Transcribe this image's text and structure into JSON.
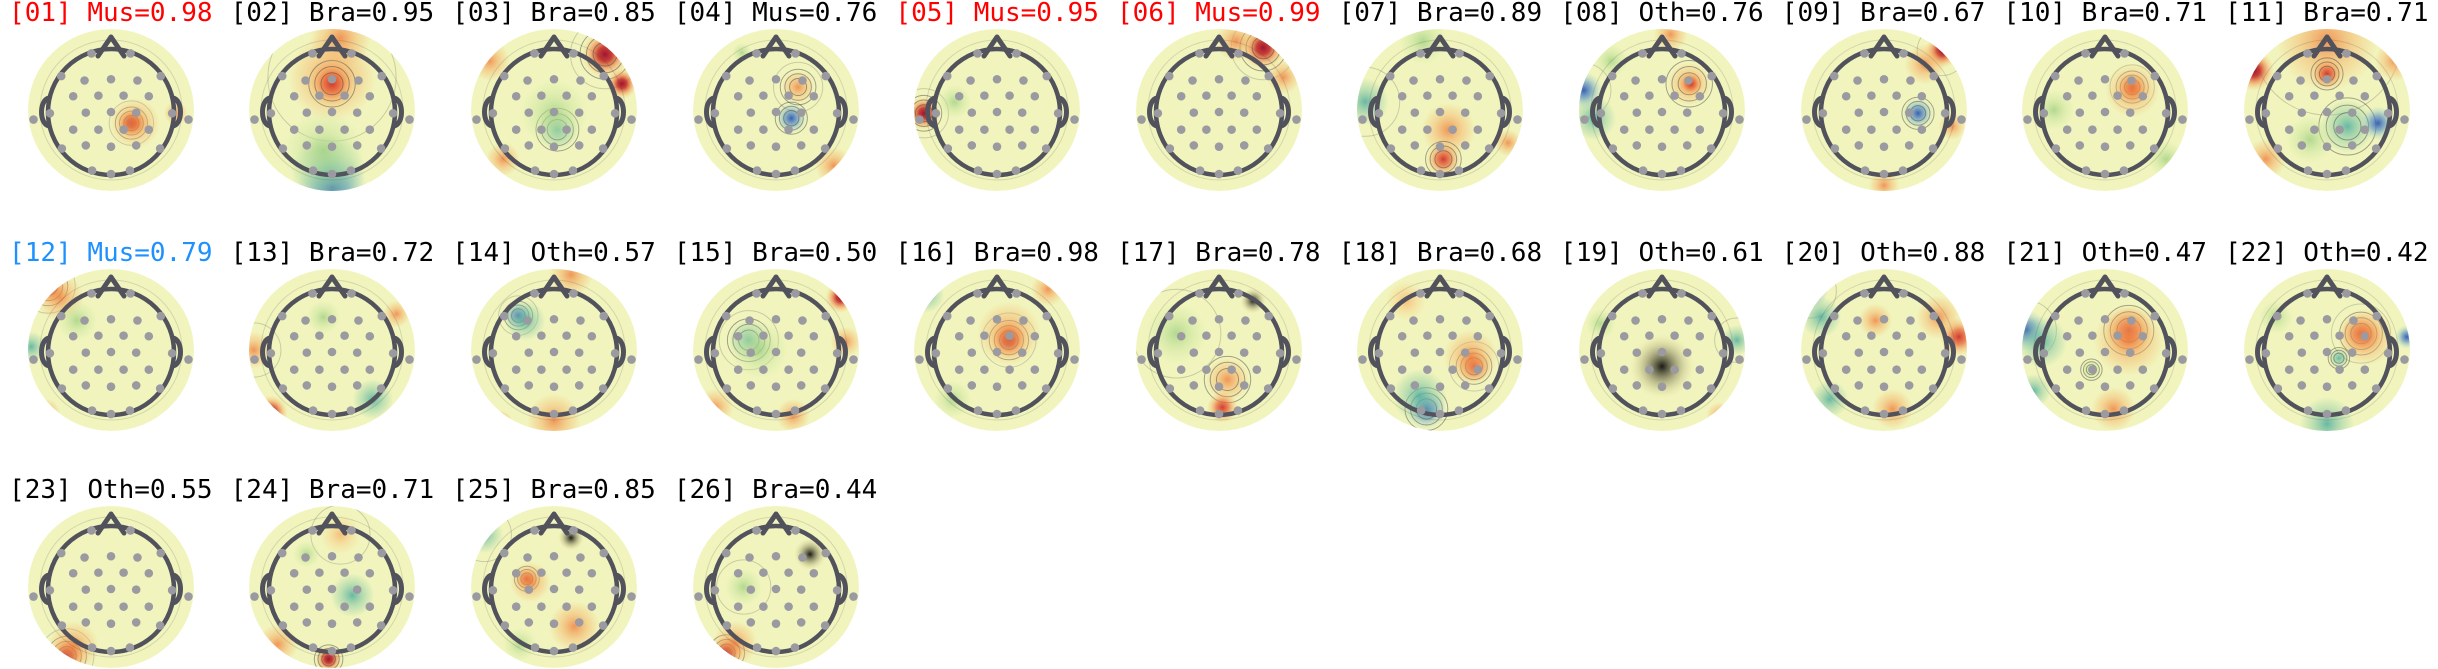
{
  "figure": {
    "background": "#ffffff",
    "head_outline_color": "#52525c",
    "sensor_dot_color": "#9a9aa0",
    "contour_color": "#3a3a3a",
    "base_field_color": "#f1f5bd"
  },
  "chart_data": {
    "type": "topomap_grid",
    "rows": 3,
    "cols": 11,
    "colormap": "red-yellow-green-blue spectral-like",
    "label_colors_seen": {
      "red": "#ff0000",
      "black": "#000000",
      "blue": "#1e90ff"
    },
    "components": [
      {
        "id": "[01]",
        "class": "Mus",
        "score": 0.98,
        "label": "[01] Mus=0.98",
        "label_color": "#ff0000",
        "blobs": [
          [
            62,
            58,
            9,
            "crim",
            1
          ],
          [
            64,
            58,
            15,
            "org",
            0
          ],
          [
            88,
            52,
            7,
            "org",
            0
          ]
        ]
      },
      {
        "id": "[02]",
        "class": "Bra",
        "score": 0.95,
        "label": "[02] Bra=0.95",
        "label_color": "#000000",
        "blobs": [
          [
            50,
            30,
            26,
            "org",
            0
          ],
          [
            50,
            34,
            13,
            "red2",
            1
          ],
          [
            50,
            97,
            20,
            "blu",
            0
          ],
          [
            48,
            88,
            22,
            "tea",
            0
          ],
          [
            45,
            75,
            24,
            "grn",
            0
          ],
          [
            55,
            6,
            18,
            "org",
            0
          ]
        ]
      },
      {
        "id": "[03]",
        "class": "Bra",
        "score": 0.85,
        "label": "[03] Bra=0.85",
        "label_color": "#000000",
        "blobs": [
          [
            80,
            16,
            14,
            "crim",
            1
          ],
          [
            90,
            34,
            9,
            "crim",
            0
          ],
          [
            12,
            20,
            12,
            "org",
            0
          ],
          [
            52,
            62,
            12,
            "tea",
            1
          ],
          [
            50,
            52,
            20,
            "grn",
            0
          ],
          [
            20,
            80,
            10,
            "org",
            0
          ]
        ]
      },
      {
        "id": "[04]",
        "class": "Mus",
        "score": 0.76,
        "label": "[04] Mus=0.76",
        "label_color": "#000000",
        "blobs": [
          [
            63,
            36,
            10,
            "org",
            1
          ],
          [
            59,
            55,
            9,
            "blu",
            1
          ],
          [
            84,
            84,
            11,
            "org",
            0
          ],
          [
            30,
            15,
            6,
            "grn",
            0
          ]
        ]
      },
      {
        "id": "[05]",
        "class": "Mus",
        "score": 0.95,
        "label": "[05] Mus=0.95",
        "label_color": "#ff0000",
        "blobs": [
          [
            7,
            52,
            10,
            "crim",
            1
          ],
          [
            25,
            45,
            10,
            "grn",
            0
          ]
        ]
      },
      {
        "id": "[06]",
        "class": "Mus",
        "score": 0.99,
        "label": "[06] Mus=0.99",
        "label_color": "#ff0000",
        "blobs": [
          [
            76,
            12,
            13,
            "crim",
            1
          ],
          [
            88,
            30,
            10,
            "org",
            0
          ],
          [
            60,
            8,
            12,
            "org",
            0
          ]
        ]
      },
      {
        "id": "[07]",
        "class": "Bra",
        "score": 0.89,
        "label": "[07] Bra=0.89",
        "label_color": "#000000",
        "blobs": [
          [
            6,
            45,
            14,
            "tea",
            0
          ],
          [
            40,
            8,
            14,
            "grn",
            0
          ],
          [
            55,
            62,
            16,
            "org",
            0
          ],
          [
            52,
            80,
            10,
            "red2",
            1
          ],
          [
            90,
            70,
            8,
            "org",
            0
          ]
        ]
      },
      {
        "id": "[08]",
        "class": "Oth",
        "score": 0.76,
        "label": "[08] Oth=0.76",
        "label_color": "#000000",
        "blobs": [
          [
            4,
            38,
            11,
            "blu",
            0
          ],
          [
            10,
            55,
            13,
            "tea",
            0
          ],
          [
            66,
            34,
            13,
            "org",
            1
          ],
          [
            67,
            34,
            7,
            "red2",
            0
          ],
          [
            55,
            4,
            10,
            "org",
            0
          ],
          [
            20,
            20,
            10,
            "grn",
            0
          ]
        ]
      },
      {
        "id": "[09]",
        "class": "Bra",
        "score": 0.67,
        "label": "[09] Bra=0.67",
        "label_color": "#000000",
        "blobs": [
          [
            84,
            14,
            10,
            "crim",
            0
          ],
          [
            74,
            22,
            12,
            "org",
            0
          ],
          [
            70,
            52,
            9,
            "blu",
            1
          ],
          [
            50,
            96,
            9,
            "org",
            0
          ],
          [
            90,
            60,
            8,
            "org",
            0
          ]
        ]
      },
      {
        "id": "[10]",
        "class": "Bra",
        "score": 0.71,
        "label": "[10] Bra=0.71",
        "label_color": "#000000",
        "blobs": [
          [
            66,
            36,
            9,
            "red2",
            1
          ],
          [
            66,
            38,
            16,
            "org",
            0
          ],
          [
            86,
            80,
            11,
            "grn",
            0
          ],
          [
            20,
            50,
            12,
            "grn",
            0
          ]
        ]
      },
      {
        "id": "[11]",
        "class": "Bra",
        "score": 0.71,
        "label": "[11] Bra=0.71",
        "label_color": "#000000",
        "blobs": [
          [
            50,
            8,
            30,
            "org",
            0
          ],
          [
            7,
            26,
            12,
            "crim",
            0
          ],
          [
            50,
            28,
            9,
            "red2",
            1
          ],
          [
            62,
            60,
            16,
            "tea",
            1
          ],
          [
            80,
            58,
            10,
            "blu",
            0
          ],
          [
            40,
            68,
            14,
            "grn",
            0
          ],
          [
            14,
            80,
            12,
            "org",
            0
          ],
          [
            90,
            20,
            12,
            "org",
            0
          ]
        ]
      },
      {
        "id": "[12]",
        "class": "Mus",
        "score": 0.79,
        "label": "[12] Mus=0.79",
        "label_color": "#1e90ff",
        "blobs": [
          [
            13,
            11,
            11,
            "crim",
            1
          ],
          [
            20,
            18,
            14,
            "org",
            0
          ],
          [
            3,
            48,
            9,
            "tea",
            0
          ],
          [
            30,
            32,
            12,
            "grn",
            0
          ],
          [
            12,
            88,
            8,
            "org",
            0
          ]
        ]
      },
      {
        "id": "[13]",
        "class": "Bra",
        "score": 0.72,
        "label": "[13] Bra=0.72",
        "label_color": "#000000",
        "blobs": [
          [
            4,
            50,
            11,
            "org",
            0
          ],
          [
            14,
            88,
            10,
            "crim",
            0
          ],
          [
            74,
            80,
            12,
            "tea",
            0
          ],
          [
            88,
            28,
            8,
            "org",
            0
          ],
          [
            45,
            30,
            10,
            "grn",
            0
          ]
        ]
      },
      {
        "id": "[14]",
        "class": "Oth",
        "score": 0.57,
        "label": "[14] Oth=0.57",
        "label_color": "#000000",
        "blobs": [
          [
            29,
            29,
            8,
            "blu",
            1
          ],
          [
            33,
            32,
            12,
            "tea",
            0
          ],
          [
            60,
            4,
            13,
            "org",
            0
          ],
          [
            50,
            93,
            16,
            "org",
            0
          ],
          [
            18,
            95,
            8,
            "red2",
            0
          ]
        ]
      },
      {
        "id": "[15]",
        "class": "Bra",
        "score": 0.5,
        "label": "[15] Bra=0.50",
        "label_color": "#000000",
        "blobs": [
          [
            34,
            44,
            12,
            "tea",
            1
          ],
          [
            40,
            50,
            17,
            "grn",
            0
          ],
          [
            88,
            18,
            9,
            "crim",
            0
          ],
          [
            91,
            45,
            9,
            "org",
            0
          ],
          [
            14,
            85,
            11,
            "org",
            0
          ],
          [
            60,
            90,
            10,
            "org",
            0
          ]
        ]
      },
      {
        "id": "[16]",
        "class": "Bra",
        "score": 0.98,
        "label": "[16] Bra=0.98",
        "label_color": "#000000",
        "blobs": [
          [
            57,
            44,
            11,
            "crim",
            1
          ],
          [
            57,
            40,
            19,
            "org",
            0
          ],
          [
            8,
            16,
            11,
            "tea",
            0
          ],
          [
            24,
            80,
            11,
            "grn",
            0
          ],
          [
            80,
            13,
            10,
            "org",
            0
          ]
        ]
      },
      {
        "id": "[17]",
        "class": "Bra",
        "score": 0.78,
        "label": "[17] Bra=0.78",
        "label_color": "#000000",
        "blobs": [
          [
            25,
            40,
            18,
            "grn",
            0
          ],
          [
            55,
            68,
            13,
            "org",
            1
          ],
          [
            52,
            85,
            9,
            "red2",
            0
          ],
          [
            70,
            20,
            8,
            "yelw",
            0
          ]
        ]
      },
      {
        "id": "[18]",
        "class": "Bra",
        "score": 0.68,
        "label": "[18] Bra=0.68",
        "label_color": "#000000",
        "blobs": [
          [
            70,
            60,
            10,
            "red2",
            1
          ],
          [
            68,
            54,
            16,
            "org",
            0
          ],
          [
            42,
            86,
            12,
            "blu",
            1
          ],
          [
            38,
            78,
            16,
            "tea",
            0
          ],
          [
            30,
            20,
            12,
            "orl",
            0
          ]
        ]
      },
      {
        "id": "[19]",
        "class": "Oth",
        "score": 0.61,
        "label": "[19] Oth=0.61",
        "label_color": "#000000",
        "blobs": [
          [
            94,
            44,
            9,
            "tea",
            0
          ],
          [
            84,
            90,
            8,
            "org",
            0
          ],
          [
            14,
            34,
            9,
            "grn",
            0
          ],
          [
            50,
            60,
            20,
            "yelw",
            0
          ]
        ]
      },
      {
        "id": "[20]",
        "class": "Oth",
        "score": 0.88,
        "label": "[20] Oth=0.88",
        "label_color": "#000000",
        "blobs": [
          [
            6,
            14,
            11,
            "blu",
            0
          ],
          [
            13,
            30,
            12,
            "tea",
            0
          ],
          [
            94,
            42,
            11,
            "red2",
            0
          ],
          [
            82,
            30,
            13,
            "org",
            0
          ],
          [
            45,
            32,
            10,
            "org",
            0
          ],
          [
            18,
            80,
            11,
            "tea",
            0
          ],
          [
            55,
            86,
            12,
            "org",
            0
          ]
        ]
      },
      {
        "id": "[21]",
        "class": "Oth",
        "score": 0.47,
        "label": "[21] Oth=0.47",
        "label_color": "#000000",
        "blobs": [
          [
            4,
            38,
            12,
            "blu",
            0
          ],
          [
            13,
            45,
            15,
            "tea",
            0
          ],
          [
            64,
            38,
            14,
            "red2",
            1
          ],
          [
            64,
            44,
            21,
            "org",
            0
          ],
          [
            42,
            62,
            6,
            "grn",
            1
          ],
          [
            55,
            86,
            13,
            "org",
            0
          ],
          [
            8,
            75,
            10,
            "tea",
            0
          ]
        ]
      },
      {
        "id": "[22]",
        "class": "Oth",
        "score": 0.42,
        "label": "[22] Oth=0.42",
        "label_color": "#000000",
        "blobs": [
          [
            70,
            40,
            12,
            "red2",
            1
          ],
          [
            73,
            42,
            17,
            "org",
            0
          ],
          [
            57,
            55,
            6,
            "tea",
            1
          ],
          [
            50,
            95,
            16,
            "tea",
            0
          ],
          [
            97,
            42,
            7,
            "blu",
            0
          ],
          [
            20,
            30,
            10,
            "grn",
            0
          ]
        ]
      },
      {
        "id": "[23]",
        "class": "Oth",
        "score": 0.55,
        "label": "[23] Oth=0.55",
        "label_color": "#000000",
        "blobs": [
          [
            24,
            92,
            11,
            "crim",
            1
          ],
          [
            28,
            86,
            15,
            "org",
            0
          ]
        ]
      },
      {
        "id": "[24]",
        "class": "Bra",
        "score": 0.71,
        "label": "[24] Bra=0.71",
        "label_color": "#000000",
        "blobs": [
          [
            55,
            18,
            12,
            "orl",
            0
          ],
          [
            62,
            55,
            13,
            "tea",
            0
          ],
          [
            48,
            94,
            8,
            "crim",
            1
          ],
          [
            18,
            85,
            12,
            "org",
            0
          ],
          [
            35,
            30,
            8,
            "grn",
            0
          ]
        ]
      },
      {
        "id": "[25]",
        "class": "Bra",
        "score": 0.85,
        "label": "[25] Bra=0.85",
        "label_color": "#000000",
        "blobs": [
          [
            9,
            18,
            11,
            "tea",
            0
          ],
          [
            34,
            45,
            7,
            "red2",
            1
          ],
          [
            36,
            47,
            12,
            "org",
            0
          ],
          [
            62,
            74,
            15,
            "org",
            0
          ],
          [
            30,
            85,
            10,
            "grn",
            0
          ],
          [
            60,
            20,
            8,
            "yelw",
            0
          ]
        ]
      },
      {
        "id": "[26]",
        "class": "Bra",
        "score": 0.44,
        "label": "[26] Bra=0.44",
        "label_color": "#000000",
        "blobs": [
          [
            31,
            50,
            11,
            "grn",
            0
          ],
          [
            21,
            90,
            10,
            "crim",
            1
          ],
          [
            26,
            84,
            13,
            "org",
            0
          ],
          [
            70,
            30,
            10,
            "yelw",
            0
          ]
        ]
      }
    ]
  }
}
